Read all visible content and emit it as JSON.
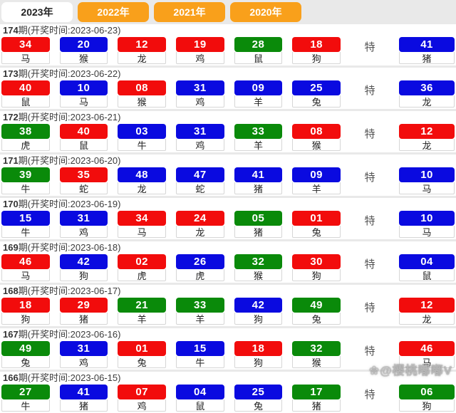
{
  "colors": {
    "red": "#f20c0c",
    "blue": "#0a0ae0",
    "green": "#0a8a0a",
    "orange": "#f9a01b"
  },
  "tabs": [
    {
      "label": "2023年",
      "active": true
    },
    {
      "label": "2022年",
      "active": false
    },
    {
      "label": "2021年",
      "active": false
    },
    {
      "label": "2020年",
      "active": false
    }
  ],
  "te_label": "特",
  "watermark": "❀@樱桃嘟嘟V",
  "rows": [
    {
      "num": "174",
      "suffix": "期(开奖时间:2023-06-23)",
      "balls": [
        {
          "n": "34",
          "c": "red",
          "z": "马"
        },
        {
          "n": "20",
          "c": "blue",
          "z": "猴"
        },
        {
          "n": "12",
          "c": "red",
          "z": "龙"
        },
        {
          "n": "19",
          "c": "red",
          "z": "鸡"
        },
        {
          "n": "28",
          "c": "green",
          "z": "鼠"
        },
        {
          "n": "18",
          "c": "red",
          "z": "狗"
        }
      ],
      "special": {
        "n": "41",
        "c": "blue",
        "z": "猪"
      }
    },
    {
      "num": "173",
      "suffix": "期(开奖时间:2023-06-22)",
      "balls": [
        {
          "n": "40",
          "c": "red",
          "z": "鼠"
        },
        {
          "n": "10",
          "c": "blue",
          "z": "马"
        },
        {
          "n": "08",
          "c": "red",
          "z": "猴"
        },
        {
          "n": "31",
          "c": "blue",
          "z": "鸡"
        },
        {
          "n": "09",
          "c": "blue",
          "z": "羊"
        },
        {
          "n": "25",
          "c": "blue",
          "z": "兔"
        }
      ],
      "special": {
        "n": "36",
        "c": "blue",
        "z": "龙"
      }
    },
    {
      "num": "172",
      "suffix": "期(开奖时间:2023-06-21)",
      "balls": [
        {
          "n": "38",
          "c": "green",
          "z": "虎"
        },
        {
          "n": "40",
          "c": "red",
          "z": "鼠"
        },
        {
          "n": "03",
          "c": "blue",
          "z": "牛"
        },
        {
          "n": "31",
          "c": "blue",
          "z": "鸡"
        },
        {
          "n": "33",
          "c": "green",
          "z": "羊"
        },
        {
          "n": "08",
          "c": "red",
          "z": "猴"
        }
      ],
      "special": {
        "n": "12",
        "c": "red",
        "z": "龙"
      }
    },
    {
      "num": "171",
      "suffix": "期(开奖时间:2023-06-20)",
      "balls": [
        {
          "n": "39",
          "c": "green",
          "z": "牛"
        },
        {
          "n": "35",
          "c": "red",
          "z": "蛇"
        },
        {
          "n": "48",
          "c": "blue",
          "z": "龙"
        },
        {
          "n": "47",
          "c": "blue",
          "z": "蛇"
        },
        {
          "n": "41",
          "c": "blue",
          "z": "猪"
        },
        {
          "n": "09",
          "c": "blue",
          "z": "羊"
        }
      ],
      "special": {
        "n": "10",
        "c": "blue",
        "z": "马"
      }
    },
    {
      "num": "170",
      "suffix": "期(开奖时间:2023-06-19)",
      "balls": [
        {
          "n": "15",
          "c": "blue",
          "z": "牛"
        },
        {
          "n": "31",
          "c": "blue",
          "z": "鸡"
        },
        {
          "n": "34",
          "c": "red",
          "z": "马"
        },
        {
          "n": "24",
          "c": "red",
          "z": "龙"
        },
        {
          "n": "05",
          "c": "green",
          "z": "猪"
        },
        {
          "n": "01",
          "c": "red",
          "z": "兔"
        }
      ],
      "special": {
        "n": "10",
        "c": "blue",
        "z": "马"
      }
    },
    {
      "num": "169",
      "suffix": "期(开奖时间:2023-06-18)",
      "balls": [
        {
          "n": "46",
          "c": "red",
          "z": "马"
        },
        {
          "n": "42",
          "c": "blue",
          "z": "狗"
        },
        {
          "n": "02",
          "c": "red",
          "z": "虎"
        },
        {
          "n": "26",
          "c": "blue",
          "z": "虎"
        },
        {
          "n": "32",
          "c": "green",
          "z": "猴"
        },
        {
          "n": "30",
          "c": "red",
          "z": "狗"
        }
      ],
      "special": {
        "n": "04",
        "c": "blue",
        "z": "鼠"
      }
    },
    {
      "num": "168",
      "suffix": "期(开奖时间:2023-06-17)",
      "balls": [
        {
          "n": "18",
          "c": "red",
          "z": "狗"
        },
        {
          "n": "29",
          "c": "red",
          "z": "猪"
        },
        {
          "n": "21",
          "c": "green",
          "z": "羊"
        },
        {
          "n": "33",
          "c": "green",
          "z": "羊"
        },
        {
          "n": "42",
          "c": "blue",
          "z": "狗"
        },
        {
          "n": "49",
          "c": "green",
          "z": "兔"
        }
      ],
      "special": {
        "n": "12",
        "c": "red",
        "z": "龙"
      }
    },
    {
      "num": "167",
      "suffix": "期(开奖时间:2023-06-16)",
      "balls": [
        {
          "n": "49",
          "c": "green",
          "z": "兔"
        },
        {
          "n": "31",
          "c": "blue",
          "z": "鸡"
        },
        {
          "n": "01",
          "c": "red",
          "z": "兔"
        },
        {
          "n": "15",
          "c": "blue",
          "z": "牛"
        },
        {
          "n": "18",
          "c": "red",
          "z": "狗"
        },
        {
          "n": "32",
          "c": "green",
          "z": "猴"
        }
      ],
      "special": {
        "n": "46",
        "c": "red",
        "z": "马"
      }
    },
    {
      "num": "166",
      "suffix": "期(开奖时间:2023-06-15)",
      "balls": [
        {
          "n": "27",
          "c": "green",
          "z": "牛"
        },
        {
          "n": "41",
          "c": "blue",
          "z": "猪"
        },
        {
          "n": "07",
          "c": "red",
          "z": "鸡"
        },
        {
          "n": "04",
          "c": "blue",
          "z": "鼠"
        },
        {
          "n": "25",
          "c": "blue",
          "z": "兔"
        },
        {
          "n": "17",
          "c": "green",
          "z": "猪"
        }
      ],
      "special": {
        "n": "06",
        "c": "green",
        "z": "狗"
      }
    }
  ]
}
